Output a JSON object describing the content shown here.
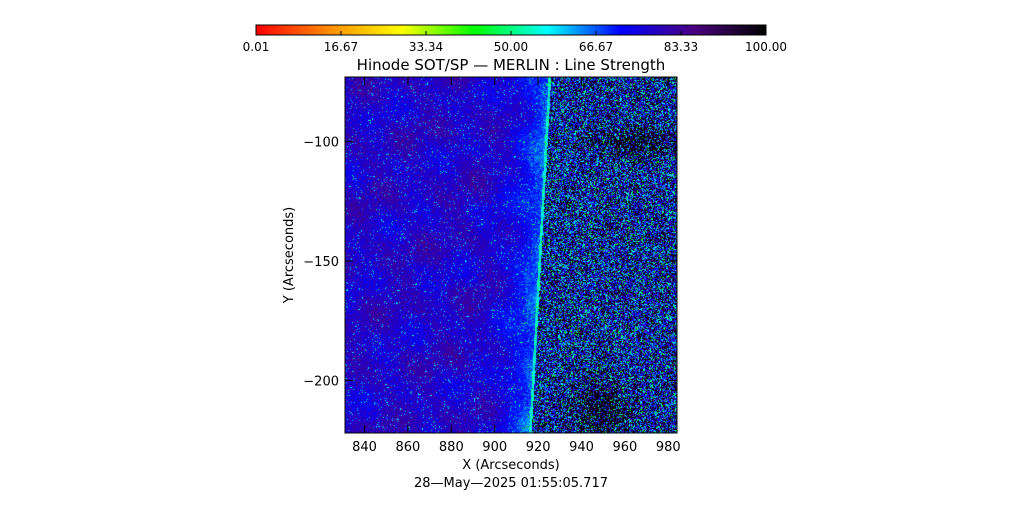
{
  "chart_data": {
    "type": "heatmap",
    "title": "Hinode SOT/SP — MERLIN : Line Strength",
    "xlabel": "X (Arcseconds)",
    "ylabel": "Y (Arcseconds)",
    "timestamp": "28—May—2025 01:55:05.717",
    "xlim": [
      831,
      984
    ],
    "ylim": [
      -222,
      -73
    ],
    "x_ticks": [
      "840",
      "860",
      "880",
      "900",
      "920",
      "940",
      "960",
      "980"
    ],
    "x_tick_values": [
      840,
      860,
      880,
      900,
      920,
      940,
      960,
      980
    ],
    "y_ticks": [
      "−100",
      "−150",
      "−200"
    ],
    "y_tick_values": [
      -100,
      -150,
      -200
    ],
    "colorbar": {
      "range": [
        0.01,
        100.0
      ],
      "tick_labels": [
        "0.01",
        "16.67",
        "33.34",
        "50.00",
        "66.67",
        "83.33",
        "100.00"
      ],
      "tick_values": [
        0.01,
        16.67,
        33.34,
        50.0,
        66.67,
        83.33,
        100.0
      ],
      "colors": [
        "#ff0000",
        "#ff8c00",
        "#ffff00",
        "#00ff00",
        "#00ffff",
        "#0000ff",
        "#4b0082",
        "#000000"
      ]
    },
    "limb": {
      "top": [
        925,
        -73
      ],
      "bottom": [
        916,
        -222
      ]
    },
    "disk_value": 78,
    "offlimb_value": 88,
    "limb_value": 55
  }
}
